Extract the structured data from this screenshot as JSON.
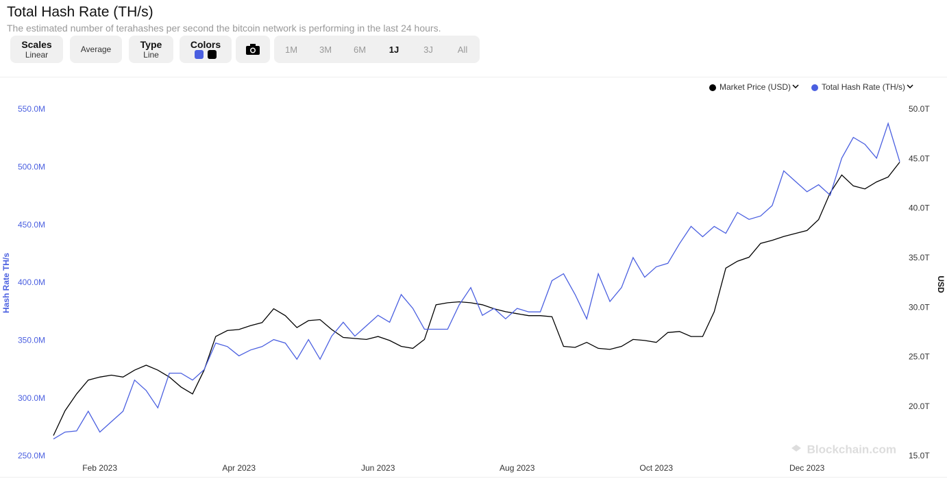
{
  "header": {
    "title": "Total Hash Rate (TH/s)",
    "subtitle": "The estimated number of terahashes per second the bitcoin network is performing in the last 24 hours."
  },
  "toolbar": {
    "scales": "Scales",
    "scales_value": "Linear",
    "average": "Average",
    "type": "Type",
    "type_value": "Line",
    "colors": "Colors",
    "ranges": [
      "1M",
      "3M",
      "6M",
      "1J",
      "3J",
      "All"
    ]
  },
  "chart_data": {
    "type": "line",
    "watermark": "Blockchain.com",
    "ylabel": "Hash Rate TH/s",
    "y2label": "USD",
    "categories": [
      null,
      null,
      null,
      null,
      "Feb 2023",
      null,
      null,
      null,
      null,
      null,
      null,
      null,
      null,
      null,
      null,
      null,
      "Apr 2023",
      null,
      null,
      null,
      null,
      null,
      null,
      null,
      null,
      null,
      null,
      null,
      "Jun 2023",
      null,
      null,
      null,
      null,
      null,
      null,
      null,
      null,
      null,
      null,
      null,
      "Aug 2023",
      null,
      null,
      null,
      null,
      null,
      null,
      null,
      null,
      null,
      null,
      null,
      "Oct 2023",
      null,
      null,
      null,
      null,
      null,
      null,
      null,
      null,
      null,
      null,
      null,
      null,
      "Dec 2023",
      null,
      null,
      null,
      null,
      null,
      null,
      null,
      null
    ],
    "ylim": [
      250,
      550
    ],
    "yticks": [
      {
        "value": 250,
        "label": "250.0M"
      },
      {
        "value": 300,
        "label": "300.0M"
      },
      {
        "value": 350,
        "label": "350.0M"
      },
      {
        "value": 400,
        "label": "400.0M"
      },
      {
        "value": 450,
        "label": "450.0M"
      },
      {
        "value": 500,
        "label": "500.0M"
      },
      {
        "value": 550,
        "label": "550.0M"
      }
    ],
    "y2lim": [
      15,
      50
    ],
    "y2ticks": [
      {
        "value": 15,
        "label": "15.0T"
      },
      {
        "value": 20,
        "label": "20.0T"
      },
      {
        "value": 25,
        "label": "25.0T"
      },
      {
        "value": 30,
        "label": "30.0T"
      },
      {
        "value": 35,
        "label": "35.0T"
      },
      {
        "value": 40,
        "label": "40.0T"
      },
      {
        "value": 45,
        "label": "45.0T"
      },
      {
        "value": 50,
        "label": "50.0T"
      }
    ],
    "legend": "top-right",
    "series": [
      {
        "name": "Market Price (USD)",
        "color": "#000000",
        "axis": "y2",
        "values": [
          17.1,
          19.6,
          21.3,
          22.7,
          23.0,
          23.2,
          23.0,
          23.7,
          24.2,
          23.7,
          23.0,
          22.0,
          21.3,
          23.7,
          27.1,
          27.7,
          27.8,
          28.2,
          28.5,
          29.9,
          29.2,
          28.0,
          28.7,
          28.8,
          27.8,
          27.0,
          26.9,
          26.8,
          27.1,
          26.7,
          26.1,
          25.9,
          26.8,
          30.3,
          30.5,
          30.6,
          30.5,
          30.3,
          29.9,
          29.6,
          29.4,
          29.2,
          29.2,
          29.1,
          26.1,
          26.0,
          26.5,
          25.9,
          25.8,
          26.1,
          26.8,
          26.7,
          26.5,
          27.5,
          27.6,
          27.1,
          27.1,
          29.6,
          34.0,
          34.7,
          35.1,
          36.5,
          36.8,
          37.2,
          37.5,
          37.8,
          38.9,
          41.6,
          43.4,
          42.3,
          42.0,
          42.7,
          43.2,
          44.7
        ]
      },
      {
        "name": "Total Hash Rate (TH/s)",
        "color": "#4a5fe0",
        "axis": "y",
        "values": [
          265,
          271,
          272,
          289,
          271,
          280,
          289,
          316,
          307,
          292,
          322,
          322,
          316,
          325,
          348,
          345,
          337,
          342,
          345,
          351,
          348,
          334,
          351,
          334,
          354,
          366,
          354,
          363,
          372,
          366,
          390,
          378,
          360,
          360,
          360,
          381,
          396,
          372,
          378,
          369,
          378,
          375,
          375,
          402,
          408,
          390,
          369,
          408,
          384,
          396,
          422,
          405,
          414,
          417,
          434,
          449,
          440,
          449,
          443,
          461,
          455,
          458,
          467,
          497,
          488,
          479,
          485,
          476,
          508,
          526,
          520,
          508,
          538,
          505
        ]
      }
    ]
  }
}
